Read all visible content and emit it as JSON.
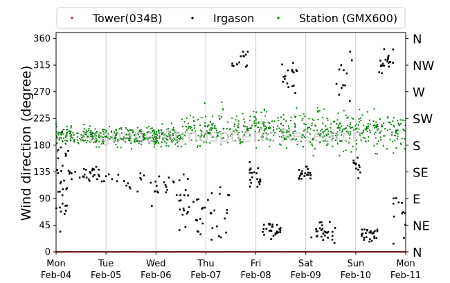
{
  "chart_data": {
    "type": "scatter",
    "title": "",
    "xlabel": "",
    "ylabel": "Wind direction (degree)",
    "ylim": [
      0,
      370
    ],
    "xlim": [
      "2019-02-04",
      "2019-02-11"
    ],
    "yticks": [
      0,
      45,
      90,
      135,
      180,
      225,
      270,
      315,
      360
    ],
    "xticks": [
      {
        "day": "Mon",
        "date": "Feb-04"
      },
      {
        "day": "Tue",
        "date": "Feb-05"
      },
      {
        "day": "Wed",
        "date": "Feb-06"
      },
      {
        "day": "Thu",
        "date": "Feb-07"
      },
      {
        "day": "Fri",
        "date": "Feb-08"
      },
      {
        "day": "Sat",
        "date": "Feb-09"
      },
      {
        "day": "Sun",
        "date": "Feb-10"
      },
      {
        "day": "Mon",
        "date": "Feb-11"
      }
    ],
    "secondary_y_labels": [
      {
        "value": 0,
        "label": "N"
      },
      {
        "value": 45,
        "label": "NE"
      },
      {
        "value": 90,
        "label": "E"
      },
      {
        "value": 135,
        "label": "SE"
      },
      {
        "value": 180,
        "label": "S"
      },
      {
        "value": 225,
        "label": "SW"
      },
      {
        "value": 270,
        "label": "W"
      },
      {
        "value": 315,
        "label": "NW"
      },
      {
        "value": 360,
        "label": "N"
      }
    ],
    "grid": "vertical",
    "legend_position": "top",
    "watermark": "Argonne Atmospheric Research",
    "series": [
      {
        "name": "Tower(034B)",
        "color": "#d62728",
        "description": "constant at 0 across the week",
        "regimes": [
          [
            0,
            7,
            0,
            0,
            0
          ]
        ]
      },
      {
        "name": "Irgason",
        "color": "#000000",
        "regimes": [
          [
            0.0,
            0.25,
            120,
            90,
            30
          ],
          [
            0.25,
            0.9,
            130,
            15,
            30
          ],
          [
            0.9,
            1.9,
            115,
            20,
            18
          ],
          [
            1.9,
            2.4,
            105,
            30,
            16
          ],
          [
            2.4,
            2.8,
            75,
            50,
            20
          ],
          [
            2.8,
            3.5,
            65,
            55,
            30
          ],
          [
            3.5,
            3.85,
            320,
            25,
            14
          ],
          [
            3.85,
            4.1,
            130,
            20,
            20
          ],
          [
            4.1,
            4.5,
            35,
            15,
            26
          ],
          [
            4.5,
            4.85,
            290,
            30,
            18
          ],
          [
            4.85,
            5.1,
            130,
            12,
            20
          ],
          [
            5.1,
            5.6,
            35,
            18,
            28
          ],
          [
            5.6,
            5.95,
            300,
            35,
            12
          ],
          [
            5.95,
            6.1,
            140,
            20,
            14
          ],
          [
            6.1,
            6.45,
            30,
            12,
            26
          ],
          [
            6.45,
            6.75,
            320,
            20,
            22
          ],
          [
            6.75,
            7.0,
            60,
            40,
            12
          ]
        ]
      },
      {
        "name": "Station (GMX600)",
        "color": "#008000",
        "regimes": [
          [
            0.0,
            2.5,
            195,
            15,
            400
          ],
          [
            2.5,
            7.0,
            205,
            30,
            560
          ]
        ]
      }
    ]
  }
}
